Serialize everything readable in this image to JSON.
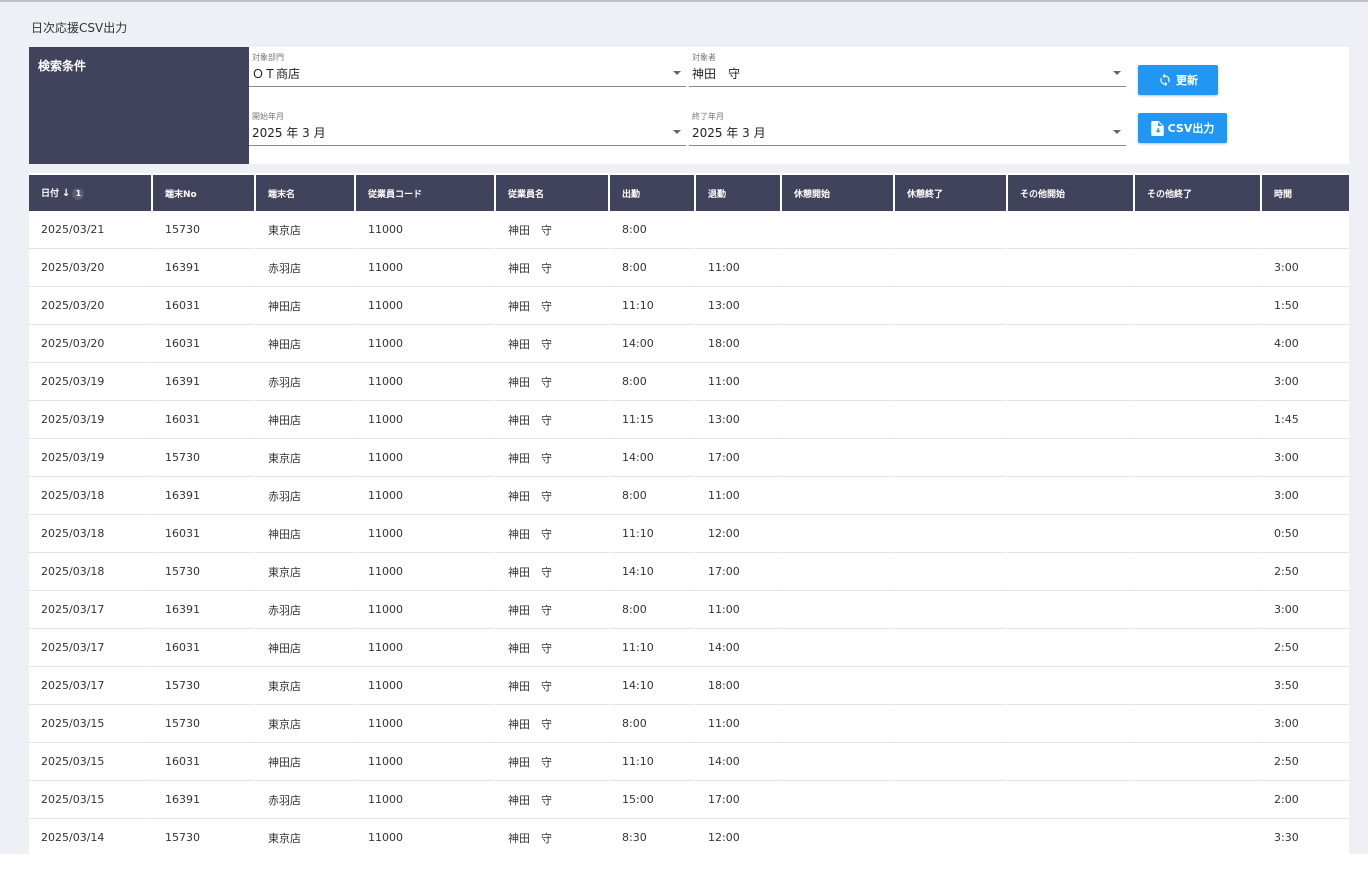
{
  "page": {
    "title": "日次応援CSV出力"
  },
  "search": {
    "section_label": "検索条件",
    "department": {
      "label": "対象部門",
      "value": "ＯＴ商店"
    },
    "person": {
      "label": "対象者",
      "value": "神田　守"
    },
    "start_month": {
      "label": "開始年月",
      "value": "2025 年 3 月"
    },
    "end_month": {
      "label": "終了年月",
      "value": "2025 年 3 月"
    },
    "refresh_label": "更新",
    "csv_label": "CSV出力"
  },
  "table": {
    "sort_indicator": "1",
    "headers": [
      "日付",
      "端末No",
      "端末名",
      "従業員コード",
      "従業員名",
      "出勤",
      "退勤",
      "休憩開始",
      "休憩終了",
      "その他開始",
      "その他終了",
      "時間"
    ],
    "rows": [
      [
        "2025/03/21",
        "15730",
        "東京店",
        "11000",
        "神田　守",
        "8:00",
        "",
        "",
        "",
        "",
        "",
        ""
      ],
      [
        "2025/03/20",
        "16391",
        "赤羽店",
        "11000",
        "神田　守",
        "8:00",
        "11:00",
        "",
        "",
        "",
        "",
        "3:00"
      ],
      [
        "2025/03/20",
        "16031",
        "神田店",
        "11000",
        "神田　守",
        "11:10",
        "13:00",
        "",
        "",
        "",
        "",
        "1:50"
      ],
      [
        "2025/03/20",
        "16031",
        "神田店",
        "11000",
        "神田　守",
        "14:00",
        "18:00",
        "",
        "",
        "",
        "",
        "4:00"
      ],
      [
        "2025/03/19",
        "16391",
        "赤羽店",
        "11000",
        "神田　守",
        "8:00",
        "11:00",
        "",
        "",
        "",
        "",
        "3:00"
      ],
      [
        "2025/03/19",
        "16031",
        "神田店",
        "11000",
        "神田　守",
        "11:15",
        "13:00",
        "",
        "",
        "",
        "",
        "1:45"
      ],
      [
        "2025/03/19",
        "15730",
        "東京店",
        "11000",
        "神田　守",
        "14:00",
        "17:00",
        "",
        "",
        "",
        "",
        "3:00"
      ],
      [
        "2025/03/18",
        "16391",
        "赤羽店",
        "11000",
        "神田　守",
        "8:00",
        "11:00",
        "",
        "",
        "",
        "",
        "3:00"
      ],
      [
        "2025/03/18",
        "16031",
        "神田店",
        "11000",
        "神田　守",
        "11:10",
        "12:00",
        "",
        "",
        "",
        "",
        "0:50"
      ],
      [
        "2025/03/18",
        "15730",
        "東京店",
        "11000",
        "神田　守",
        "14:10",
        "17:00",
        "",
        "",
        "",
        "",
        "2:50"
      ],
      [
        "2025/03/17",
        "16391",
        "赤羽店",
        "11000",
        "神田　守",
        "8:00",
        "11:00",
        "",
        "",
        "",
        "",
        "3:00"
      ],
      [
        "2025/03/17",
        "16031",
        "神田店",
        "11000",
        "神田　守",
        "11:10",
        "14:00",
        "",
        "",
        "",
        "",
        "2:50"
      ],
      [
        "2025/03/17",
        "15730",
        "東京店",
        "11000",
        "神田　守",
        "14:10",
        "18:00",
        "",
        "",
        "",
        "",
        "3:50"
      ],
      [
        "2025/03/15",
        "15730",
        "東京店",
        "11000",
        "神田　守",
        "8:00",
        "11:00",
        "",
        "",
        "",
        "",
        "3:00"
      ],
      [
        "2025/03/15",
        "16031",
        "神田店",
        "11000",
        "神田　守",
        "11:10",
        "14:00",
        "",
        "",
        "",
        "",
        "2:50"
      ],
      [
        "2025/03/15",
        "16391",
        "赤羽店",
        "11000",
        "神田　守",
        "15:00",
        "17:00",
        "",
        "",
        "",
        "",
        "2:00"
      ],
      [
        "2025/03/14",
        "15730",
        "東京店",
        "11000",
        "神田　守",
        "8:30",
        "12:00",
        "",
        "",
        "",
        "",
        "3:30"
      ]
    ]
  },
  "colors": {
    "accent": "#2196f3",
    "header_bg": "#41425c",
    "page_bg": "#eff0f5"
  }
}
